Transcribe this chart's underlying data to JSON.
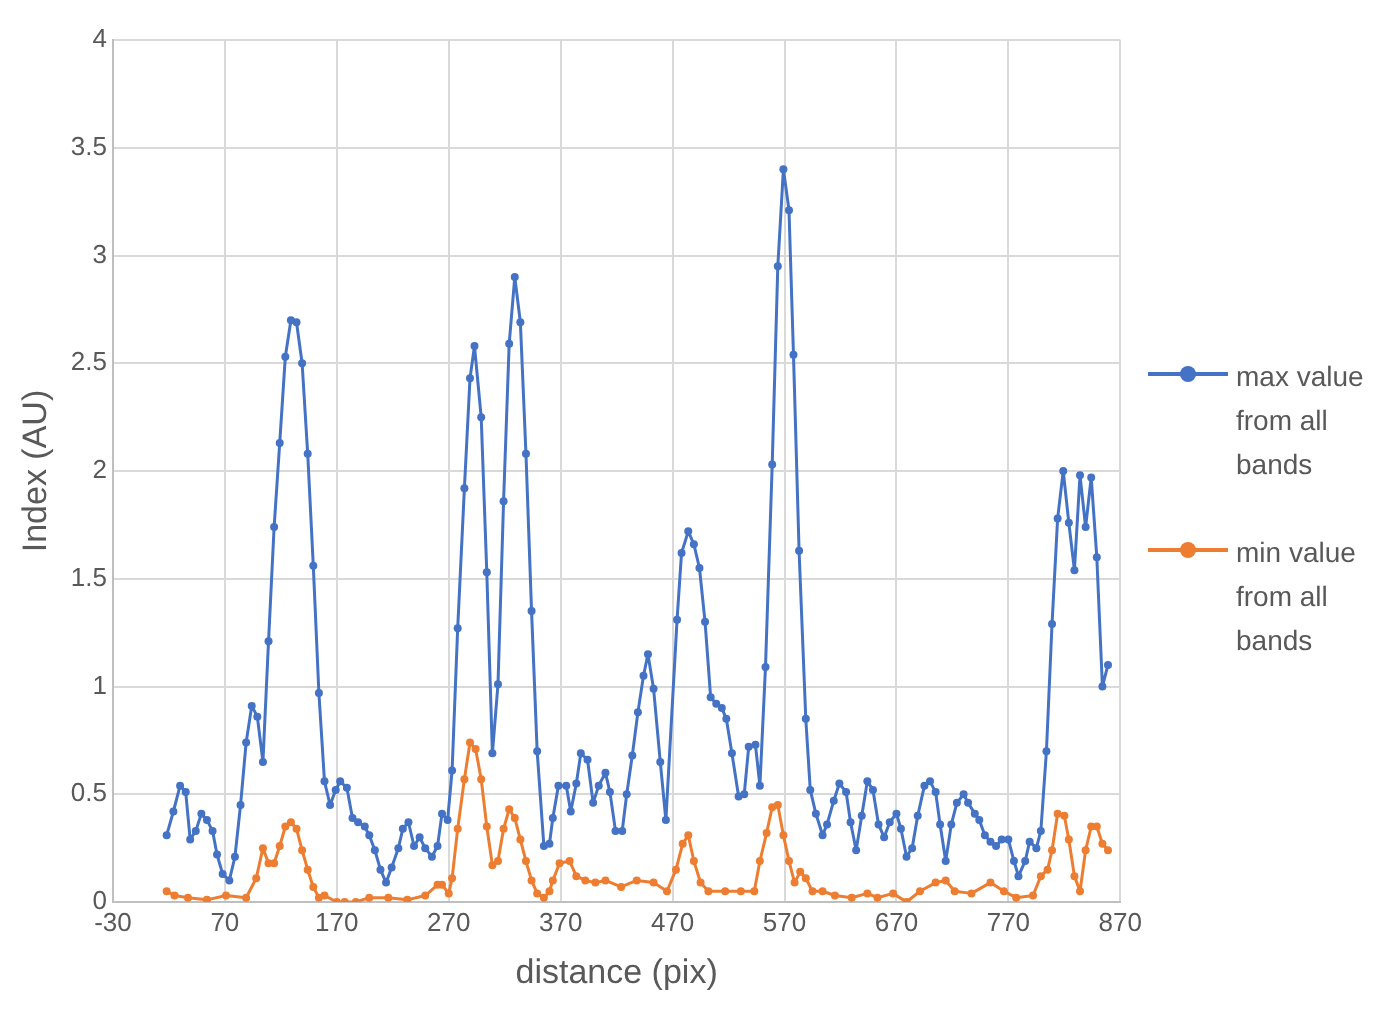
{
  "chart_data": {
    "type": "line",
    "xlabel": "distance (pix)",
    "ylabel": "Index (AU)",
    "xlim": [
      -30,
      870
    ],
    "xticks": [
      -30,
      70,
      170,
      270,
      370,
      470,
      570,
      670,
      770,
      870
    ],
    "ylim": [
      0,
      4
    ],
    "yticks": [
      0,
      0.5,
      1,
      1.5,
      2,
      2.5,
      3,
      3.5,
      4
    ],
    "grid": true,
    "legend": "right",
    "marker": "circle",
    "line_style": "solid",
    "series": [
      {
        "name": "max value from all bands",
        "color": "#4472c4",
        "x": [
          18,
          24,
          30,
          35,
          39,
          44,
          49,
          54,
          59,
          63,
          68,
          74,
          79,
          84,
          89,
          94,
          99,
          104,
          109,
          114,
          119,
          124,
          129,
          134,
          139,
          144,
          149,
          154,
          159,
          164,
          169,
          173,
          179,
          184,
          189,
          195,
          199,
          204,
          209,
          214,
          219,
          225,
          229,
          234,
          239,
          244,
          249,
          255,
          260,
          264,
          269,
          273,
          278,
          284,
          289,
          293,
          299,
          304,
          309,
          314,
          319,
          324,
          329,
          334,
          339,
          344,
          349,
          355,
          360,
          363,
          368,
          375,
          379,
          384,
          388,
          394,
          399,
          404,
          410,
          414,
          419,
          425,
          429,
          434,
          439,
          444,
          448,
          453,
          459,
          464,
          474,
          478,
          484,
          489,
          494,
          499,
          504,
          509,
          514,
          518,
          523,
          529,
          534,
          538,
          544,
          548,
          553,
          559,
          564,
          569,
          574,
          578,
          583,
          589,
          593,
          598,
          604,
          608,
          614,
          619,
          625,
          629,
          634,
          639,
          644,
          649,
          654,
          659,
          664,
          670,
          674,
          679,
          684,
          689,
          695,
          700,
          705,
          709,
          714,
          719,
          724,
          730,
          734,
          740,
          744,
          749,
          754,
          759,
          764,
          770,
          775,
          779,
          785,
          789,
          795,
          799,
          804,
          809,
          814,
          819,
          824,
          829,
          834,
          839,
          844,
          849,
          854,
          859
        ],
        "values": [
          0.31,
          0.42,
          0.54,
          0.51,
          0.29,
          0.33,
          0.41,
          0.38,
          0.33,
          0.22,
          0.13,
          0.1,
          0.21,
          0.45,
          0.74,
          0.91,
          0.86,
          0.65,
          1.21,
          1.74,
          2.13,
          2.53,
          2.7,
          2.69,
          2.5,
          2.08,
          1.56,
          0.97,
          0.56,
          0.45,
          0.52,
          0.56,
          0.53,
          0.39,
          0.37,
          0.35,
          0.31,
          0.24,
          0.15,
          0.09,
          0.16,
          0.25,
          0.34,
          0.37,
          0.26,
          0.3,
          0.25,
          0.21,
          0.26,
          0.41,
          0.38,
          0.61,
          1.27,
          1.92,
          2.43,
          2.58,
          2.25,
          1.53,
          0.69,
          1.01,
          1.86,
          2.59,
          2.9,
          2.69,
          2.08,
          1.35,
          0.7,
          0.26,
          0.27,
          0.39,
          0.54,
          0.54,
          0.42,
          0.55,
          0.69,
          0.66,
          0.46,
          0.54,
          0.6,
          0.51,
          0.33,
          0.33,
          0.5,
          0.68,
          0.88,
          1.05,
          1.15,
          0.99,
          0.65,
          0.38,
          1.31,
          1.62,
          1.72,
          1.66,
          1.55,
          1.3,
          0.95,
          0.92,
          0.9,
          0.85,
          0.69,
          0.49,
          0.5,
          0.72,
          0.73,
          0.54,
          1.09,
          2.03,
          2.95,
          3.4,
          3.21,
          2.54,
          1.63,
          0.85,
          0.52,
          0.41,
          0.31,
          0.36,
          0.47,
          0.55,
          0.51,
          0.37,
          0.24,
          0.4,
          0.56,
          0.52,
          0.36,
          0.3,
          0.37,
          0.41,
          0.34,
          0.21,
          0.25,
          0.4,
          0.54,
          0.56,
          0.51,
          0.36,
          0.19,
          0.36,
          0.46,
          0.5,
          0.46,
          0.41,
          0.38,
          0.31,
          0.28,
          0.26,
          0.29,
          0.29,
          0.19,
          0.12,
          0.19,
          0.28,
          0.25,
          0.33,
          0.7,
          1.29,
          1.78,
          2,
          1.76,
          1.54,
          1.98,
          1.74,
          1.97,
          1.6,
          1,
          1.1
        ]
      },
      {
        "name": "min value from all bands",
        "color": "#ed7d31",
        "x": [
          18,
          25,
          37,
          54,
          71,
          89,
          98,
          104,
          109,
          114,
          119,
          124,
          129,
          134,
          139,
          144,
          149,
          154,
          159,
          170,
          177,
          187,
          199,
          216,
          233,
          249,
          260,
          264,
          270,
          273,
          278,
          284,
          289,
          294,
          299,
          304,
          309,
          314,
          319,
          324,
          329,
          334,
          339,
          344,
          349,
          355,
          360,
          363,
          369,
          378,
          384,
          392,
          401,
          410,
          424,
          438,
          453,
          465,
          473,
          479,
          484,
          489,
          495,
          502,
          517,
          531,
          543,
          548,
          554,
          559,
          564,
          569,
          574,
          579,
          584,
          589,
          595,
          604,
          615,
          630,
          644,
          653,
          667,
          679,
          691,
          705,
          714,
          722,
          737,
          754,
          766,
          777,
          792,
          799,
          805,
          809,
          814,
          820,
          824,
          829,
          834,
          839,
          844,
          849,
          854,
          859
        ],
        "values": [
          0.05,
          0.03,
          0.02,
          0.01,
          0.03,
          0.02,
          0.11,
          0.25,
          0.18,
          0.18,
          0.26,
          0.35,
          0.37,
          0.34,
          0.24,
          0.15,
          0.07,
          0.02,
          0.03,
          0,
          0,
          0,
          0.02,
          0.02,
          0.01,
          0.03,
          0.08,
          0.08,
          0.04,
          0.11,
          0.34,
          0.57,
          0.74,
          0.71,
          0.57,
          0.35,
          0.17,
          0.19,
          0.34,
          0.43,
          0.39,
          0.29,
          0.19,
          0.1,
          0.04,
          0.02,
          0.05,
          0.1,
          0.18,
          0.19,
          0.12,
          0.1,
          0.09,
          0.1,
          0.07,
          0.1,
          0.09,
          0.05,
          0.15,
          0.27,
          0.31,
          0.19,
          0.09,
          0.05,
          0.05,
          0.05,
          0.05,
          0.19,
          0.32,
          0.44,
          0.45,
          0.31,
          0.19,
          0.09,
          0.14,
          0.11,
          0.05,
          0.05,
          0.03,
          0.02,
          0.04,
          0.02,
          0.04,
          0,
          0.05,
          0.09,
          0.1,
          0.05,
          0.04,
          0.09,
          0.05,
          0.02,
          0.03,
          0.12,
          0.15,
          0.24,
          0.41,
          0.4,
          0.29,
          0.12,
          0.05,
          0.24,
          0.35,
          0.35,
          0.27,
          0.24
        ]
      }
    ]
  }
}
